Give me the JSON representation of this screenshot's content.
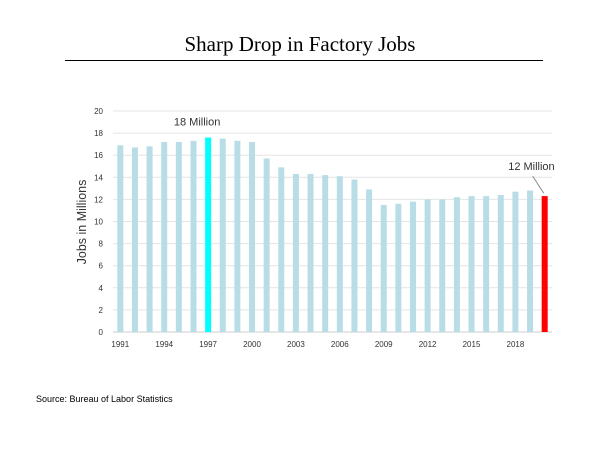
{
  "title": "Sharp Drop in Factory Jobs",
  "source": "Source: Bureau of Labor Statistics",
  "chart_data": {
    "type": "bar",
    "title": "Sharp Drop in Factory Jobs",
    "xlabel": "",
    "ylabel": "Jobs in Millions",
    "ylim": [
      0,
      20
    ],
    "yticks": [
      0,
      2,
      4,
      6,
      8,
      10,
      12,
      14,
      16,
      18,
      20
    ],
    "xtick_labels": [
      "1991",
      "1994",
      "1997",
      "2000",
      "2003",
      "2006",
      "2009",
      "2012",
      "2015",
      "2018"
    ],
    "grid": true,
    "categories": [
      "1991",
      "1992",
      "1993",
      "1994",
      "1995",
      "1996",
      "1997",
      "1998",
      "1999",
      "2000",
      "2001",
      "2002",
      "2003",
      "2004",
      "2005",
      "2006",
      "2007",
      "2008",
      "2009",
      "2010",
      "2011",
      "2012",
      "2013",
      "2014",
      "2015",
      "2016",
      "2017",
      "2018",
      "2019",
      "2020"
    ],
    "values": [
      16.9,
      16.7,
      16.8,
      17.2,
      17.2,
      17.3,
      17.6,
      17.5,
      17.3,
      17.2,
      15.7,
      14.9,
      14.3,
      14.3,
      14.2,
      14.1,
      13.8,
      12.9,
      11.5,
      11.6,
      11.8,
      12.0,
      12.0,
      12.2,
      12.3,
      12.3,
      12.4,
      12.7,
      12.8,
      12.3
    ],
    "colors": {
      "default": "#b9dde7",
      "peak": "#00ffff",
      "last": "#ff0000",
      "grid": "#e4e4e4",
      "text": "#333333"
    },
    "highlights": [
      {
        "category": "1997",
        "color_key": "peak",
        "annotation": "18 Million"
      },
      {
        "category": "2020",
        "color_key": "last",
        "annotation": "12 Million"
      }
    ]
  }
}
